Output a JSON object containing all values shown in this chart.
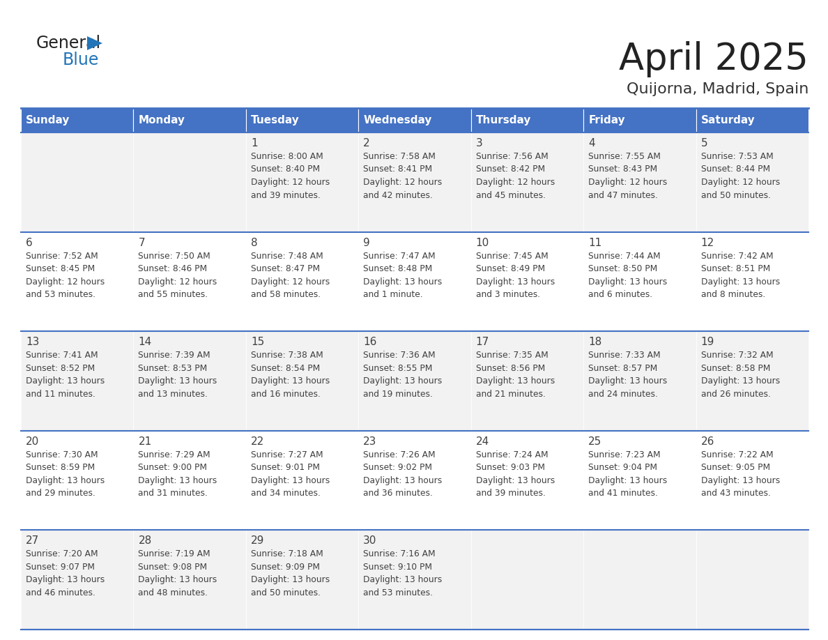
{
  "title": "April 2025",
  "subtitle": "Quijorna, Madrid, Spain",
  "header_bg_color": "#4472C4",
  "header_text_color": "#FFFFFF",
  "cell_bg_even": "#F2F2F2",
  "cell_bg_odd": "#FFFFFF",
  "border_color": "#4472C4",
  "text_color": "#404040",
  "days_of_week": [
    "Sunday",
    "Monday",
    "Tuesday",
    "Wednesday",
    "Thursday",
    "Friday",
    "Saturday"
  ],
  "calendar_data": [
    [
      {
        "day": "",
        "info": ""
      },
      {
        "day": "",
        "info": ""
      },
      {
        "day": "1",
        "info": "Sunrise: 8:00 AM\nSunset: 8:40 PM\nDaylight: 12 hours\nand 39 minutes."
      },
      {
        "day": "2",
        "info": "Sunrise: 7:58 AM\nSunset: 8:41 PM\nDaylight: 12 hours\nand 42 minutes."
      },
      {
        "day": "3",
        "info": "Sunrise: 7:56 AM\nSunset: 8:42 PM\nDaylight: 12 hours\nand 45 minutes."
      },
      {
        "day": "4",
        "info": "Sunrise: 7:55 AM\nSunset: 8:43 PM\nDaylight: 12 hours\nand 47 minutes."
      },
      {
        "day": "5",
        "info": "Sunrise: 7:53 AM\nSunset: 8:44 PM\nDaylight: 12 hours\nand 50 minutes."
      }
    ],
    [
      {
        "day": "6",
        "info": "Sunrise: 7:52 AM\nSunset: 8:45 PM\nDaylight: 12 hours\nand 53 minutes."
      },
      {
        "day": "7",
        "info": "Sunrise: 7:50 AM\nSunset: 8:46 PM\nDaylight: 12 hours\nand 55 minutes."
      },
      {
        "day": "8",
        "info": "Sunrise: 7:48 AM\nSunset: 8:47 PM\nDaylight: 12 hours\nand 58 minutes."
      },
      {
        "day": "9",
        "info": "Sunrise: 7:47 AM\nSunset: 8:48 PM\nDaylight: 13 hours\nand 1 minute."
      },
      {
        "day": "10",
        "info": "Sunrise: 7:45 AM\nSunset: 8:49 PM\nDaylight: 13 hours\nand 3 minutes."
      },
      {
        "day": "11",
        "info": "Sunrise: 7:44 AM\nSunset: 8:50 PM\nDaylight: 13 hours\nand 6 minutes."
      },
      {
        "day": "12",
        "info": "Sunrise: 7:42 AM\nSunset: 8:51 PM\nDaylight: 13 hours\nand 8 minutes."
      }
    ],
    [
      {
        "day": "13",
        "info": "Sunrise: 7:41 AM\nSunset: 8:52 PM\nDaylight: 13 hours\nand 11 minutes."
      },
      {
        "day": "14",
        "info": "Sunrise: 7:39 AM\nSunset: 8:53 PM\nDaylight: 13 hours\nand 13 minutes."
      },
      {
        "day": "15",
        "info": "Sunrise: 7:38 AM\nSunset: 8:54 PM\nDaylight: 13 hours\nand 16 minutes."
      },
      {
        "day": "16",
        "info": "Sunrise: 7:36 AM\nSunset: 8:55 PM\nDaylight: 13 hours\nand 19 minutes."
      },
      {
        "day": "17",
        "info": "Sunrise: 7:35 AM\nSunset: 8:56 PM\nDaylight: 13 hours\nand 21 minutes."
      },
      {
        "day": "18",
        "info": "Sunrise: 7:33 AM\nSunset: 8:57 PM\nDaylight: 13 hours\nand 24 minutes."
      },
      {
        "day": "19",
        "info": "Sunrise: 7:32 AM\nSunset: 8:58 PM\nDaylight: 13 hours\nand 26 minutes."
      }
    ],
    [
      {
        "day": "20",
        "info": "Sunrise: 7:30 AM\nSunset: 8:59 PM\nDaylight: 13 hours\nand 29 minutes."
      },
      {
        "day": "21",
        "info": "Sunrise: 7:29 AM\nSunset: 9:00 PM\nDaylight: 13 hours\nand 31 minutes."
      },
      {
        "day": "22",
        "info": "Sunrise: 7:27 AM\nSunset: 9:01 PM\nDaylight: 13 hours\nand 34 minutes."
      },
      {
        "day": "23",
        "info": "Sunrise: 7:26 AM\nSunset: 9:02 PM\nDaylight: 13 hours\nand 36 minutes."
      },
      {
        "day": "24",
        "info": "Sunrise: 7:24 AM\nSunset: 9:03 PM\nDaylight: 13 hours\nand 39 minutes."
      },
      {
        "day": "25",
        "info": "Sunrise: 7:23 AM\nSunset: 9:04 PM\nDaylight: 13 hours\nand 41 minutes."
      },
      {
        "day": "26",
        "info": "Sunrise: 7:22 AM\nSunset: 9:05 PM\nDaylight: 13 hours\nand 43 minutes."
      }
    ],
    [
      {
        "day": "27",
        "info": "Sunrise: 7:20 AM\nSunset: 9:07 PM\nDaylight: 13 hours\nand 46 minutes."
      },
      {
        "day": "28",
        "info": "Sunrise: 7:19 AM\nSunset: 9:08 PM\nDaylight: 13 hours\nand 48 minutes."
      },
      {
        "day": "29",
        "info": "Sunrise: 7:18 AM\nSunset: 9:09 PM\nDaylight: 13 hours\nand 50 minutes."
      },
      {
        "day": "30",
        "info": "Sunrise: 7:16 AM\nSunset: 9:10 PM\nDaylight: 13 hours\nand 53 minutes."
      },
      {
        "day": "",
        "info": ""
      },
      {
        "day": "",
        "info": ""
      },
      {
        "day": "",
        "info": ""
      }
    ]
  ]
}
